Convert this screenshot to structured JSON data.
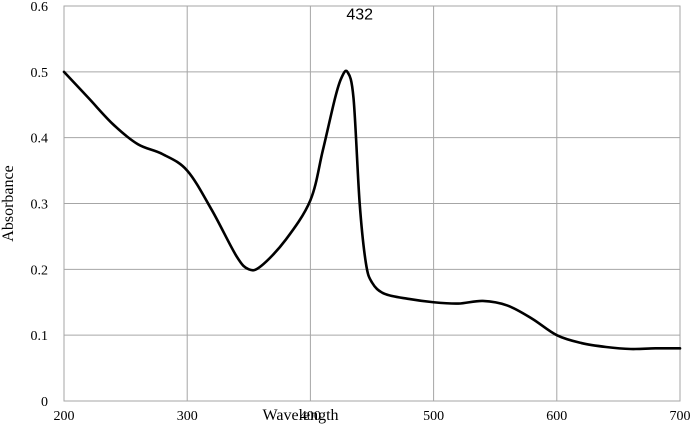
{
  "chart_data": {
    "type": "line",
    "xlabel": "Wavelength",
    "ylabel": "Absorbance",
    "xlim": [
      200,
      700
    ],
    "ylim": [
      0,
      0.6
    ],
    "x_ticks": [
      "200",
      "300",
      "400",
      "500",
      "600",
      "700"
    ],
    "y_ticks": [
      "0",
      "0.1",
      "0.2",
      "0.3",
      "0.4",
      "0.5",
      "0.6"
    ],
    "grid": true,
    "legend": "none",
    "line_color": "#000000",
    "annotations": [
      {
        "text": "432",
        "x": 440,
        "y": 0.59
      }
    ],
    "series": [
      {
        "x": [
          200,
          220,
          240,
          260,
          280,
          300,
          320,
          340,
          350,
          360,
          380,
          400,
          410,
          420,
          425,
          430,
          435,
          440,
          445,
          450,
          460,
          480,
          500,
          520,
          540,
          560,
          580,
          600,
          620,
          640,
          660,
          680,
          700
        ],
        "values": [
          0.5,
          0.46,
          0.42,
          0.39,
          0.375,
          0.35,
          0.29,
          0.22,
          0.2,
          0.205,
          0.245,
          0.305,
          0.38,
          0.46,
          0.49,
          0.5,
          0.46,
          0.3,
          0.21,
          0.18,
          0.163,
          0.155,
          0.15,
          0.148,
          0.152,
          0.145,
          0.125,
          0.1,
          0.088,
          0.082,
          0.079,
          0.08,
          0.08
        ]
      }
    ]
  }
}
